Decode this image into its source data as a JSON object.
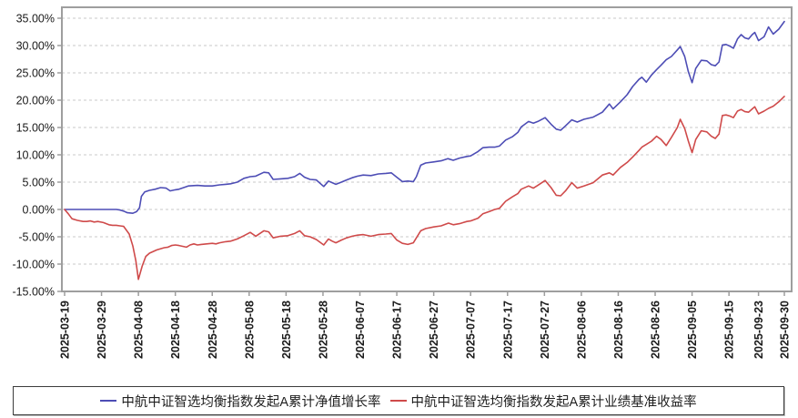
{
  "chart_data": {
    "type": "line",
    "title": "",
    "xlabel": "",
    "ylabel": "",
    "grid": "horizontal-dashed",
    "legend_position": "bottom",
    "ylim": [
      -15,
      36.8
    ],
    "x_day_span": 195,
    "y_tick_values": [
      35,
      30,
      25,
      20,
      15,
      10,
      5,
      0,
      -5,
      -10,
      -15
    ],
    "y_tick_labels": [
      "35.00%",
      "30.00%",
      "25.00%",
      "20.00%",
      "15.00%",
      "10.00%",
      "5.00%",
      "0.00%",
      "-5.00%",
      "-10.00%",
      "-15.00%"
    ],
    "x_tick_days": [
      0,
      10,
      20,
      30,
      40,
      50,
      60,
      70,
      80,
      90,
      100,
      110,
      120,
      130,
      140,
      150,
      160,
      170,
      180,
      188,
      195
    ],
    "x_tick_labels": [
      "2025-03-19",
      "2025-03-29",
      "2025-04-08",
      "2025-04-18",
      "2025-04-28",
      "2025-05-08",
      "2025-05-18",
      "2025-05-28",
      "2025-06-07",
      "2025-06-17",
      "2025-06-27",
      "2025-07-07",
      "2025-07-17",
      "2025-07-27",
      "2025-08-06",
      "2025-08-16",
      "2025-08-26",
      "2025-09-05",
      "2025-09-15",
      "2025-09-23",
      "2025-09-30"
    ],
    "colors": {
      "grid": "#c9c9c9",
      "axis": "#9e9e9e",
      "tick_text": "#1a1a1a"
    },
    "series": [
      {
        "name": "中航中证智选均衡指数发起A累计净值增长率",
        "color": "#4d4db5",
        "points": [
          [
            0,
            0
          ],
          [
            2,
            0
          ],
          [
            4,
            0
          ],
          [
            6,
            0
          ],
          [
            8,
            0
          ],
          [
            10,
            0
          ],
          [
            12,
            0
          ],
          [
            14,
            0
          ],
          [
            15,
            -0.1
          ],
          [
            16,
            -0.3
          ],
          [
            17,
            -0.6
          ],
          [
            18.5,
            -0.7
          ],
          [
            19.5,
            -0.4
          ],
          [
            20.3,
            0.3
          ],
          [
            20.8,
            2.4
          ],
          [
            21.7,
            3.2
          ],
          [
            23,
            3.5
          ],
          [
            24.5,
            3.7
          ],
          [
            26,
            4.0
          ],
          [
            27.5,
            3.9
          ],
          [
            28.6,
            3.4
          ],
          [
            30,
            3.6
          ],
          [
            31,
            3.7
          ],
          [
            33.5,
            4.3
          ],
          [
            36,
            4.4
          ],
          [
            38,
            4.3
          ],
          [
            40,
            4.3
          ],
          [
            42,
            4.5
          ],
          [
            43.6,
            4.6
          ],
          [
            45,
            4.7
          ],
          [
            46.8,
            5.0
          ],
          [
            48.6,
            5.7
          ],
          [
            50.3,
            6.0
          ],
          [
            51.8,
            6.1
          ],
          [
            54,
            6.8
          ],
          [
            55.3,
            6.7
          ],
          [
            56.5,
            5.5
          ],
          [
            58.5,
            5.6
          ],
          [
            60.5,
            5.7
          ],
          [
            62.3,
            6.0
          ],
          [
            63.7,
            6.6
          ],
          [
            65,
            5.9
          ],
          [
            66.5,
            5.5
          ],
          [
            68.2,
            5.4
          ],
          [
            70.2,
            4.2
          ],
          [
            71.5,
            5.2
          ],
          [
            72.5,
            4.9
          ],
          [
            73.5,
            4.6
          ],
          [
            75,
            5.0
          ],
          [
            76.4,
            5.4
          ],
          [
            77.9,
            5.8
          ],
          [
            79.4,
            6.1
          ],
          [
            80.9,
            6.3
          ],
          [
            83,
            6.2
          ],
          [
            85,
            6.5
          ],
          [
            87,
            6.6
          ],
          [
            88.5,
            6.7
          ],
          [
            90,
            5.9
          ],
          [
            91.5,
            5.1
          ],
          [
            93,
            5.2
          ],
          [
            94.5,
            5.1
          ],
          [
            95.3,
            6.0
          ],
          [
            96.5,
            8.1
          ],
          [
            97.8,
            8.5
          ],
          [
            100,
            8.7
          ],
          [
            102,
            8.9
          ],
          [
            103.8,
            9.3
          ],
          [
            105.3,
            9.0
          ],
          [
            107,
            9.4
          ],
          [
            109,
            9.7
          ],
          [
            110,
            9.8
          ],
          [
            112,
            10.6
          ],
          [
            113.3,
            11.3
          ],
          [
            115,
            11.4
          ],
          [
            116.5,
            11.4
          ],
          [
            117.8,
            11.6
          ],
          [
            119.5,
            12.7
          ],
          [
            121.3,
            13.3
          ],
          [
            122.8,
            14.1
          ],
          [
            123.7,
            15.1
          ],
          [
            125.7,
            16.1
          ],
          [
            127,
            15.8
          ],
          [
            128.2,
            16.1
          ],
          [
            130.2,
            16.8
          ],
          [
            131.8,
            15.6
          ],
          [
            133.2,
            14.7
          ],
          [
            134.4,
            14.5
          ],
          [
            135.7,
            15.3
          ],
          [
            137.4,
            16.4
          ],
          [
            138.9,
            16.0
          ],
          [
            140.7,
            16.5
          ],
          [
            143.2,
            16.9
          ],
          [
            145.7,
            17.8
          ],
          [
            147.6,
            19.3
          ],
          [
            148.6,
            18.4
          ],
          [
            150.6,
            19.7
          ],
          [
            152.4,
            21.0
          ],
          [
            153.9,
            22.5
          ],
          [
            155.6,
            23.8
          ],
          [
            156.4,
            24.2
          ],
          [
            157.6,
            23.3
          ],
          [
            159,
            24.6
          ],
          [
            160.4,
            25.6
          ],
          [
            161.6,
            26.4
          ],
          [
            163,
            27.4
          ],
          [
            164.4,
            28.0
          ],
          [
            166,
            29.2
          ],
          [
            166.8,
            29.8
          ],
          [
            168,
            28.0
          ],
          [
            169,
            25.2
          ],
          [
            170,
            23.2
          ],
          [
            171,
            25.8
          ],
          [
            172.5,
            27.3
          ],
          [
            174,
            27.2
          ],
          [
            175.2,
            26.5
          ],
          [
            176.3,
            26.3
          ],
          [
            177.3,
            27.0
          ],
          [
            178.2,
            30.1
          ],
          [
            179.2,
            30.2
          ],
          [
            180.2,
            29.9
          ],
          [
            181.2,
            29.5
          ],
          [
            182.3,
            31.2
          ],
          [
            183.3,
            32.0
          ],
          [
            184.3,
            31.4
          ],
          [
            185.3,
            31.2
          ],
          [
            186.3,
            32.0
          ],
          [
            187,
            32.4
          ],
          [
            188,
            30.9
          ],
          [
            189.5,
            31.6
          ],
          [
            190.7,
            33.4
          ],
          [
            192,
            32.1
          ],
          [
            193.5,
            33.0
          ],
          [
            195,
            34.4
          ]
        ]
      },
      {
        "name": "中航中证智选均衡指数发起A累计业绩基准收益率",
        "color": "#cf4a4a",
        "points": [
          [
            0,
            0
          ],
          [
            1,
            -0.8
          ],
          [
            2,
            -1.7
          ],
          [
            3.5,
            -2.0
          ],
          [
            5,
            -2.2
          ],
          [
            6,
            -2.2
          ],
          [
            7,
            -2.1
          ],
          [
            8,
            -2.3
          ],
          [
            9,
            -2.2
          ],
          [
            10.5,
            -2.4
          ],
          [
            12,
            -2.8
          ],
          [
            13,
            -2.9
          ],
          [
            14,
            -2.9
          ],
          [
            15,
            -3.0
          ],
          [
            16,
            -3.1
          ],
          [
            17.5,
            -4.5
          ],
          [
            18.5,
            -6.7
          ],
          [
            19.3,
            -9.4
          ],
          [
            20,
            -12.8
          ],
          [
            21,
            -10.4
          ],
          [
            22,
            -8.6
          ],
          [
            23,
            -8.0
          ],
          [
            25,
            -7.4
          ],
          [
            27,
            -7.0
          ],
          [
            28,
            -6.9
          ],
          [
            29,
            -6.6
          ],
          [
            30,
            -6.5
          ],
          [
            31,
            -6.6
          ],
          [
            33,
            -6.9
          ],
          [
            34,
            -6.5
          ],
          [
            35,
            -6.3
          ],
          [
            36,
            -6.5
          ],
          [
            37,
            -6.4
          ],
          [
            38.5,
            -6.3
          ],
          [
            40,
            -6.2
          ],
          [
            41,
            -6.3
          ],
          [
            42,
            -6.1
          ],
          [
            43.6,
            -5.9
          ],
          [
            45,
            -5.8
          ],
          [
            46.8,
            -5.4
          ],
          [
            48.6,
            -4.8
          ],
          [
            50.3,
            -4.2
          ],
          [
            51.8,
            -4.9
          ],
          [
            54,
            -3.9
          ],
          [
            55.3,
            -4.1
          ],
          [
            56.5,
            -5.2
          ],
          [
            58.5,
            -4.9
          ],
          [
            60.5,
            -4.8
          ],
          [
            62.3,
            -4.4
          ],
          [
            63.7,
            -3.9
          ],
          [
            65,
            -4.8
          ],
          [
            66.5,
            -5.0
          ],
          [
            68.2,
            -5.5
          ],
          [
            70.2,
            -6.5
          ],
          [
            71.5,
            -5.4
          ],
          [
            72.5,
            -5.8
          ],
          [
            73.5,
            -6.1
          ],
          [
            75,
            -5.6
          ],
          [
            76.4,
            -5.2
          ],
          [
            77.9,
            -4.9
          ],
          [
            79.4,
            -4.7
          ],
          [
            80.9,
            -4.6
          ],
          [
            83,
            -4.9
          ],
          [
            85,
            -4.6
          ],
          [
            87,
            -4.5
          ],
          [
            88.5,
            -4.4
          ],
          [
            90,
            -5.6
          ],
          [
            91.5,
            -6.2
          ],
          [
            93,
            -6.4
          ],
          [
            94.5,
            -6.1
          ],
          [
            95.3,
            -5.2
          ],
          [
            96.5,
            -3.9
          ],
          [
            97.8,
            -3.5
          ],
          [
            100,
            -3.2
          ],
          [
            102,
            -3.0
          ],
          [
            104,
            -2.5
          ],
          [
            105.3,
            -2.8
          ],
          [
            107,
            -2.6
          ],
          [
            109,
            -2.2
          ],
          [
            110,
            -2.1
          ],
          [
            112,
            -1.6
          ],
          [
            113.3,
            -0.8
          ],
          [
            115,
            -0.4
          ],
          [
            116.5,
            0.0
          ],
          [
            117.8,
            0.2
          ],
          [
            119.5,
            1.5
          ],
          [
            121.3,
            2.3
          ],
          [
            122.8,
            2.9
          ],
          [
            123.7,
            3.7
          ],
          [
            125.7,
            4.3
          ],
          [
            127,
            3.9
          ],
          [
            128.2,
            4.4
          ],
          [
            130.2,
            5.3
          ],
          [
            131.8,
            4.0
          ],
          [
            133.2,
            2.6
          ],
          [
            134.4,
            2.5
          ],
          [
            135.7,
            3.4
          ],
          [
            137.4,
            4.9
          ],
          [
            138.9,
            3.9
          ],
          [
            140.7,
            4.3
          ],
          [
            143.2,
            4.9
          ],
          [
            145.7,
            6.3
          ],
          [
            147.6,
            6.7
          ],
          [
            148.6,
            6.3
          ],
          [
            150.6,
            7.7
          ],
          [
            152.4,
            8.6
          ],
          [
            153.9,
            9.6
          ],
          [
            155.6,
            10.8
          ],
          [
            156.4,
            11.4
          ],
          [
            157.6,
            11.9
          ],
          [
            159,
            12.5
          ],
          [
            160.4,
            13.4
          ],
          [
            161.6,
            12.8
          ],
          [
            163,
            11.7
          ],
          [
            164.4,
            13.2
          ],
          [
            166,
            15.0
          ],
          [
            166.8,
            16.5
          ],
          [
            168,
            14.8
          ],
          [
            169,
            12.5
          ],
          [
            170,
            10.4
          ],
          [
            171,
            12.8
          ],
          [
            172.5,
            14.4
          ],
          [
            174,
            14.2
          ],
          [
            175.2,
            13.4
          ],
          [
            176.3,
            13.0
          ],
          [
            177.3,
            13.8
          ],
          [
            178.2,
            17.2
          ],
          [
            179.2,
            17.3
          ],
          [
            180.2,
            17.1
          ],
          [
            181.2,
            16.8
          ],
          [
            182.3,
            18.0
          ],
          [
            183.3,
            18.3
          ],
          [
            184.3,
            17.9
          ],
          [
            185.3,
            17.8
          ],
          [
            186.3,
            18.4
          ],
          [
            187,
            18.8
          ],
          [
            188,
            17.5
          ],
          [
            189.5,
            18.0
          ],
          [
            190.7,
            18.5
          ],
          [
            192,
            18.9
          ],
          [
            193.5,
            19.7
          ],
          [
            195,
            20.7
          ]
        ]
      }
    ]
  },
  "legend": {
    "items": [
      {
        "label": "中航中证智选均衡指数发起A累计净值增长率",
        "color": "#4d4db5"
      },
      {
        "label": "中航中证智选均衡指数发起A累计业绩基准收益率",
        "color": "#cf4a4a"
      }
    ]
  }
}
